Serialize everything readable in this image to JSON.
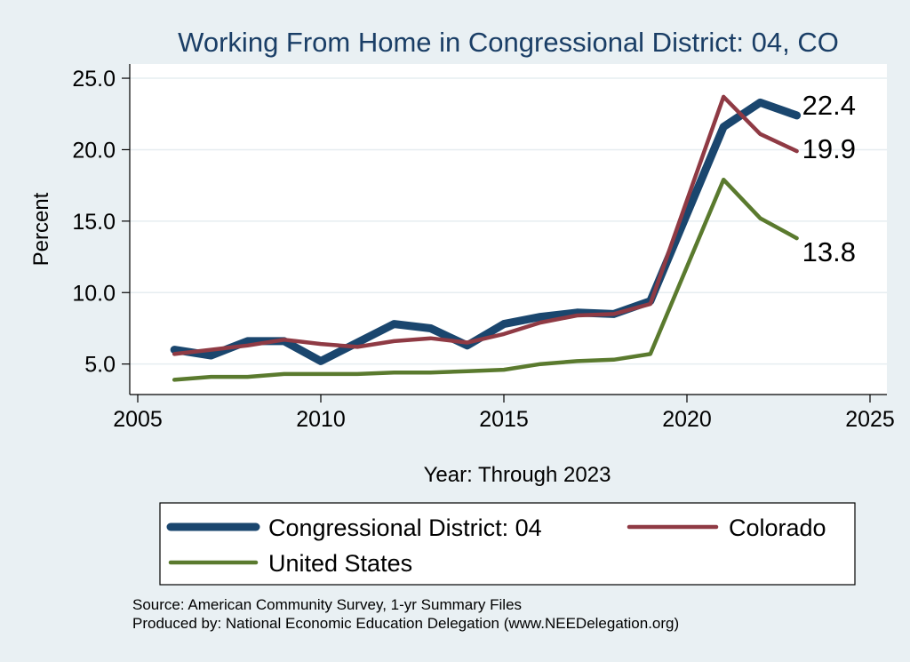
{
  "chart_data": {
    "type": "line",
    "title": "Working From Home in Congressional District: 04, CO",
    "xlabel": "Year: Through 2023",
    "ylabel": "Percent",
    "xlim": [
      2005,
      2025
    ],
    "ylim": [
      3.3,
      25.5
    ],
    "xticks": [
      2005,
      2010,
      2015,
      2020,
      2025
    ],
    "xtick_labels": [
      "2005",
      "2010",
      "2015",
      "2020",
      "2025"
    ],
    "yticks": [
      5,
      10,
      15,
      20,
      25
    ],
    "ytick_labels": [
      "5.0",
      "10.0",
      "15.0",
      "20.0",
      "25.0"
    ],
    "grid": true,
    "legend_position": "bottom",
    "x": [
      2006,
      2007,
      2008,
      2009,
      2010,
      2011,
      2012,
      2013,
      2014,
      2015,
      2016,
      2017,
      2018,
      2019,
      2021,
      2022,
      2023
    ],
    "series": [
      {
        "name": "Congressional District: 04",
        "color": "#1a466e",
        "values": [
          6.0,
          5.6,
          6.6,
          6.6,
          5.2,
          6.5,
          7.8,
          7.5,
          6.3,
          7.8,
          8.3,
          8.6,
          8.5,
          9.4,
          21.6,
          23.3,
          22.4
        ],
        "end_label": "22.4"
      },
      {
        "name": "Colorado",
        "color": "#8f3a44",
        "values": [
          5.7,
          6.0,
          6.3,
          6.7,
          6.4,
          6.2,
          6.6,
          6.8,
          6.5,
          7.1,
          7.9,
          8.4,
          8.5,
          9.2,
          23.7,
          21.1,
          19.9
        ],
        "end_label": "19.9"
      },
      {
        "name": "United States",
        "color": "#5a7a2e",
        "values": [
          3.9,
          4.1,
          4.1,
          4.3,
          4.3,
          4.3,
          4.4,
          4.4,
          4.5,
          4.6,
          5.0,
          5.2,
          5.3,
          5.7,
          17.9,
          15.2,
          13.8
        ],
        "end_label": "13.8"
      }
    ]
  },
  "source_lines": [
    "Source: American Community Survey, 1-yr Summary Files",
    "Produced by: National Economic Education Delegation (www.NEEDelegation.org)"
  ]
}
